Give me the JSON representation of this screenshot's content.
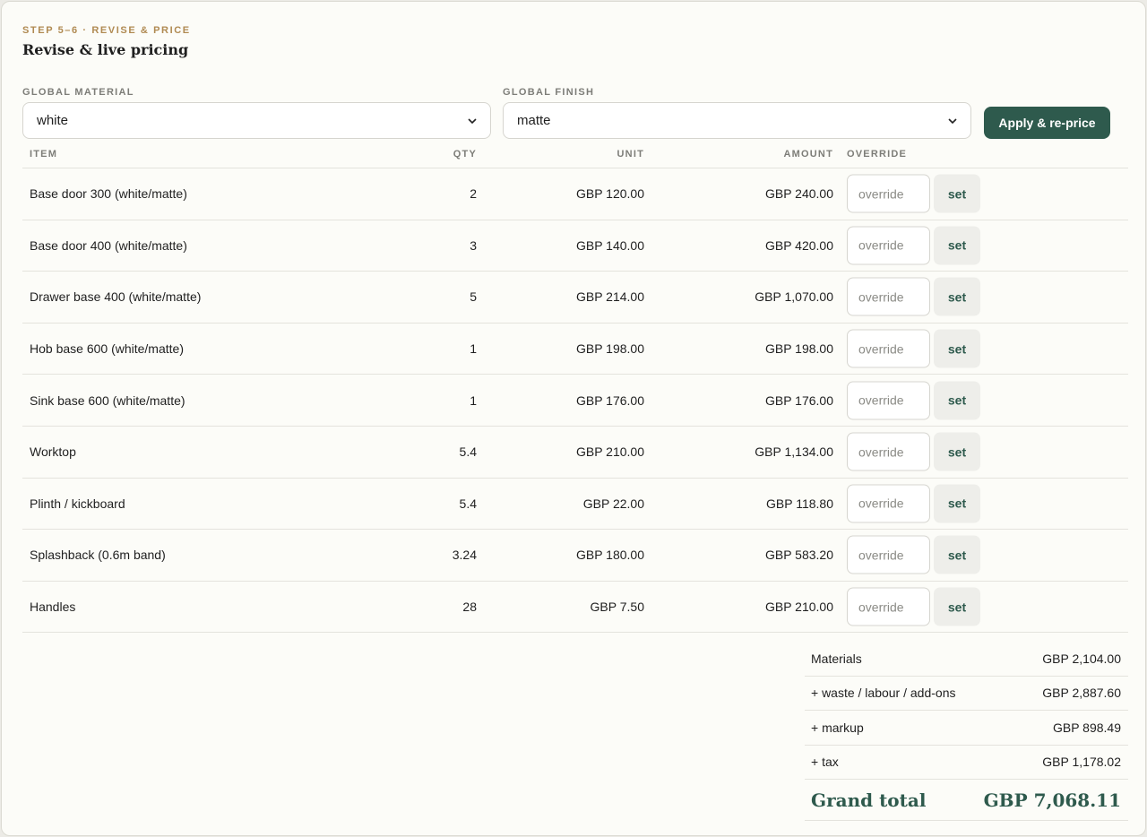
{
  "header": {
    "step": "STEP 5–6 · REVISE & PRICE",
    "title": "Revise & live pricing"
  },
  "controls": {
    "material_label": "GLOBAL MATERIAL",
    "material_value": "white",
    "finish_label": "GLOBAL FINISH",
    "finish_value": "matte",
    "apply_label": "Apply & re-price"
  },
  "table": {
    "columns": {
      "item": "ITEM",
      "qty": "QTY",
      "unit": "UNIT",
      "amount": "AMOUNT",
      "override": "OVERRIDE"
    },
    "override_placeholder": "override",
    "set_label": "set",
    "rows": [
      {
        "item": "Base door 300 (white/matte)",
        "qty": "2",
        "unit": "GBP 120.00",
        "amount": "GBP 240.00"
      },
      {
        "item": "Base door 400 (white/matte)",
        "qty": "3",
        "unit": "GBP 140.00",
        "amount": "GBP 420.00"
      },
      {
        "item": "Drawer base 400 (white/matte)",
        "qty": "5",
        "unit": "GBP 214.00",
        "amount": "GBP 1,070.00"
      },
      {
        "item": "Hob base 600 (white/matte)",
        "qty": "1",
        "unit": "GBP 198.00",
        "amount": "GBP 198.00"
      },
      {
        "item": "Sink base 600 (white/matte)",
        "qty": "1",
        "unit": "GBP 176.00",
        "amount": "GBP 176.00"
      },
      {
        "item": "Worktop",
        "qty": "5.4",
        "unit": "GBP 210.00",
        "amount": "GBP 1,134.00"
      },
      {
        "item": "Plinth / kickboard",
        "qty": "5.4",
        "unit": "GBP 22.00",
        "amount": "GBP 118.80"
      },
      {
        "item": "Splashback (0.6m band)",
        "qty": "3.24",
        "unit": "GBP 180.00",
        "amount": "GBP 583.20"
      },
      {
        "item": "Handles",
        "qty": "28",
        "unit": "GBP 7.50",
        "amount": "GBP 210.00"
      }
    ]
  },
  "summary": {
    "rows": [
      {
        "label": "Materials",
        "value": "GBP 2,104.00"
      },
      {
        "label": "+ waste / labour / add-ons",
        "value": "GBP 2,887.60"
      },
      {
        "label": "+ markup",
        "value": "GBP 898.49"
      },
      {
        "label": "+ tax",
        "value": "GBP 1,178.02"
      }
    ],
    "grand_label": "Grand total",
    "grand_value": "GBP 7,068.11"
  },
  "colors": {
    "accent": "#2e5a4d",
    "step": "#b08a52",
    "background": "#fcfcf8"
  },
  "icons": {
    "select_chevron": "chevron-down-icon"
  }
}
